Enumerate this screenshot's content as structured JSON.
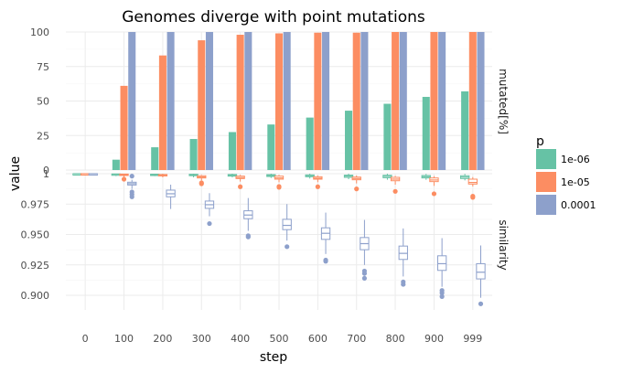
{
  "chart_data": {
    "type": "bar",
    "title": "Genomes diverge with point mutations",
    "xlabel": "step",
    "ylabel": "value",
    "categories": [
      "0",
      "100",
      "200",
      "300",
      "400",
      "500",
      "600",
      "700",
      "800",
      "900",
      "999"
    ],
    "legend": {
      "title": "p",
      "placement": "right",
      "entries": [
        {
          "label": "1e-06",
          "color": "#66c2a5"
        },
        {
          "label": "1e-05",
          "color": "#fc8d62"
        },
        {
          "label": "0.0001",
          "color": "#8da0cb"
        }
      ]
    },
    "grid": true,
    "panels": [
      {
        "strip": "mutated[%]",
        "type": "bar",
        "ylim": [
          0,
          100
        ],
        "yticks": [
          "0",
          "25",
          "50",
          "75",
          "100"
        ],
        "series": [
          {
            "p": "1e-06",
            "values": [
              0,
              7.5,
              16.5,
              22.5,
              27.5,
              33,
              38,
              43,
              48,
              53,
              57
            ]
          },
          {
            "p": "1e-05",
            "values": [
              0,
              61,
              83,
              94,
              98,
              99,
              99.5,
              99.5,
              100,
              100,
              100
            ]
          },
          {
            "p": "0.0001",
            "values": [
              0,
              100,
              100,
              100,
              100,
              100,
              100,
              100,
              100,
              100,
              100
            ]
          }
        ]
      },
      {
        "strip": "similarity",
        "type": "boxplot",
        "ylim": [
          0.888,
          1.0
        ],
        "yticks": [
          "0.900",
          "0.925",
          "0.950",
          "0.975",
          "1"
        ],
        "series": [
          {
            "p": "1e-06",
            "boxes": [
              {
                "min": 1.0,
                "q1": 1.0,
                "median": 1.0,
                "q3": 1.0,
                "max": 1.0,
                "outliers": []
              },
              {
                "min": 0.998,
                "q1": 0.9992,
                "median": 0.9995,
                "q3": 0.9998,
                "max": 1.0,
                "outliers": []
              },
              {
                "min": 0.998,
                "q1": 0.999,
                "median": 0.9993,
                "q3": 0.9996,
                "max": 1.0,
                "outliers": []
              },
              {
                "min": 0.997,
                "q1": 0.9985,
                "median": 0.999,
                "q3": 0.9995,
                "max": 1.0,
                "outliers": []
              },
              {
                "min": 0.997,
                "q1": 0.998,
                "median": 0.9987,
                "q3": 0.9993,
                "max": 1.0,
                "outliers": []
              },
              {
                "min": 0.9965,
                "q1": 0.9977,
                "median": 0.9985,
                "q3": 0.9992,
                "max": 1.0,
                "outliers": []
              },
              {
                "min": 0.996,
                "q1": 0.9975,
                "median": 0.9983,
                "q3": 0.999,
                "max": 1.0,
                "outliers": []
              },
              {
                "min": 0.9955,
                "q1": 0.997,
                "median": 0.998,
                "q3": 0.9988,
                "max": 1.0,
                "outliers": []
              },
              {
                "min": 0.995,
                "q1": 0.9967,
                "median": 0.9978,
                "q3": 0.9987,
                "max": 1.0,
                "outliers": []
              },
              {
                "min": 0.995,
                "q1": 0.9965,
                "median": 0.9975,
                "q3": 0.9985,
                "max": 0.9998,
                "outliers": []
              },
              {
                "min": 0.9945,
                "q1": 0.996,
                "median": 0.9972,
                "q3": 0.9983,
                "max": 0.9998,
                "outliers": []
              }
            ]
          },
          {
            "p": "1e-05",
            "boxes": [
              {
                "min": 1.0,
                "q1": 1.0,
                "median": 1.0,
                "q3": 1.0,
                "max": 1.0,
                "outliers": []
              },
              {
                "min": 0.9965,
                "q1": 0.9985,
                "median": 0.9993,
                "q3": 0.9997,
                "max": 1.0,
                "outliers": [
                  0.9955
                ]
              },
              {
                "min": 0.997,
                "q1": 0.9982,
                "median": 0.9987,
                "q3": 0.9993,
                "max": 1.0,
                "outliers": []
              },
              {
                "min": 0.9945,
                "q1": 0.9965,
                "median": 0.9973,
                "q3": 0.9983,
                "max": 0.999,
                "outliers": [
                  0.9917,
                  0.9925
                ]
              },
              {
                "min": 0.9935,
                "q1": 0.996,
                "median": 0.9968,
                "q3": 0.998,
                "max": 0.999,
                "outliers": [
                  0.9893
                ]
              },
              {
                "min": 0.993,
                "q1": 0.9955,
                "median": 0.9965,
                "q3": 0.998,
                "max": 0.999,
                "outliers": [
                  0.9888,
                  0.9895
                ]
              },
              {
                "min": 0.993,
                "q1": 0.9955,
                "median": 0.9963,
                "q3": 0.9975,
                "max": 0.9985,
                "outliers": [
                  0.9893
                ]
              },
              {
                "min": 0.992,
                "q1": 0.995,
                "median": 0.996,
                "q3": 0.9972,
                "max": 0.9985,
                "outliers": [
                  0.9875
                ]
              },
              {
                "min": 0.991,
                "q1": 0.9942,
                "median": 0.9955,
                "q3": 0.997,
                "max": 0.9982,
                "outliers": [
                  0.9855
                ]
              },
              {
                "min": 0.99,
                "q1": 0.9935,
                "median": 0.9948,
                "q3": 0.9965,
                "max": 0.998,
                "outliers": [
                  0.9835
                ]
              },
              {
                "min": 0.9895,
                "q1": 0.9915,
                "median": 0.9928,
                "q3": 0.9955,
                "max": 0.9972,
                "outliers": [
                  0.9805,
                  0.9815
                ]
              }
            ]
          },
          {
            "p": "0.0001",
            "boxes": [
              {
                "min": 1.0,
                "q1": 1.0,
                "median": 1.0,
                "q3": 1.0,
                "max": 1.0,
                "outliers": []
              },
              {
                "min": 0.9875,
                "q1": 0.9907,
                "median": 0.9918,
                "q3": 0.993,
                "max": 0.995,
                "outliers": [
                  0.981,
                  0.983,
                  0.985,
                  0.998
                ]
              },
              {
                "min": 0.971,
                "q1": 0.981,
                "median": 0.9835,
                "q3": 0.9865,
                "max": 0.991,
                "outliers": []
              },
              {
                "min": 0.965,
                "q1": 0.9715,
                "median": 0.9745,
                "q3": 0.9775,
                "max": 0.984,
                "outliers": [
                  0.959
                ]
              },
              {
                "min": 0.953,
                "q1": 0.963,
                "median": 0.966,
                "q3": 0.9695,
                "max": 0.98,
                "outliers": [
                  0.948,
                  0.949
                ]
              },
              {
                "min": 0.945,
                "q1": 0.954,
                "median": 0.9575,
                "q3": 0.9625,
                "max": 0.975,
                "outliers": [
                  0.94
                ]
              },
              {
                "min": 0.934,
                "q1": 0.946,
                "median": 0.951,
                "q3": 0.9555,
                "max": 0.968,
                "outliers": [
                  0.928,
                  0.929
                ]
              },
              {
                "min": 0.925,
                "q1": 0.9375,
                "median": 0.9425,
                "q3": 0.9475,
                "max": 0.962,
                "outliers": [
                  0.914,
                  0.918,
                  0.92
                ]
              },
              {
                "min": 0.9155,
                "q1": 0.9295,
                "median": 0.9345,
                "q3": 0.9405,
                "max": 0.955,
                "outliers": [
                  0.909,
                  0.911
                ]
              },
              {
                "min": 0.907,
                "q1": 0.9205,
                "median": 0.926,
                "q3": 0.9325,
                "max": 0.947,
                "outliers": [
                  0.899,
                  0.902,
                  0.904
                ]
              },
              {
                "min": 0.898,
                "q1": 0.9135,
                "median": 0.919,
                "q3": 0.926,
                "max": 0.941,
                "outliers": [
                  0.893
                ]
              }
            ]
          }
        ]
      }
    ]
  }
}
